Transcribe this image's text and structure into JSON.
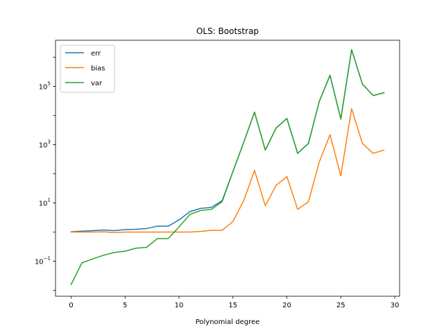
{
  "chart_data": {
    "type": "line",
    "title": "OLS: Bootstrap",
    "xlabel": "Polynomial degree",
    "ylabel": "",
    "yscale": "log",
    "xlim": [
      -1.45,
      30.45
    ],
    "ylim": [
      0.0063,
      3800000
    ],
    "x_ticks": [
      0,
      5,
      10,
      15,
      20,
      25,
      30
    ],
    "y_ticks": [
      {
        "value": 0.1,
        "base": "10",
        "exp": "−1"
      },
      {
        "value": 10,
        "base": "10",
        "exp": "1"
      },
      {
        "value": 1000,
        "base": "10",
        "exp": "3"
      },
      {
        "value": 100000,
        "base": "10",
        "exp": "5"
      }
    ],
    "grid": false,
    "legend_position": "top-left",
    "x": [
      0,
      1,
      2,
      3,
      4,
      5,
      6,
      7,
      8,
      9,
      10,
      11,
      12,
      13,
      14,
      15,
      16,
      17,
      18,
      19,
      20,
      21,
      22,
      23,
      24,
      25,
      26,
      27,
      28,
      29
    ],
    "series": [
      {
        "name": "err",
        "color": "#1f77b4",
        "values": [
          1.02,
          1.08,
          1.12,
          1.18,
          1.12,
          1.22,
          1.25,
          1.32,
          1.6,
          1.6,
          2.6,
          5.0,
          6.5,
          7.0,
          12.0,
          120,
          1200,
          13000,
          650,
          3700,
          7900,
          500,
          1100,
          30000,
          240000,
          7500,
          1800000,
          120000,
          48000,
          60000
        ]
      },
      {
        "name": "bias",
        "color": "#ff7f0e",
        "values": [
          1.0,
          1.0,
          1.0,
          1.02,
          0.96,
          1.0,
          1.0,
          1.0,
          1.0,
          1.0,
          1.0,
          1.0,
          1.05,
          1.15,
          1.15,
          2.3,
          12,
          130,
          8,
          40,
          80,
          6,
          11,
          250,
          2200,
          85,
          17000,
          1100,
          500,
          650
        ]
      },
      {
        "name": "var",
        "color": "#2ca02c",
        "values": [
          0.016,
          0.088,
          0.12,
          0.16,
          0.2,
          0.22,
          0.28,
          0.3,
          0.6,
          0.6,
          1.5,
          4.0,
          5.5,
          6.0,
          11.0,
          120,
          1200,
          13000,
          650,
          3700,
          7900,
          500,
          1100,
          30000,
          240000,
          7500,
          1800000,
          120000,
          48000,
          60000
        ]
      }
    ]
  }
}
